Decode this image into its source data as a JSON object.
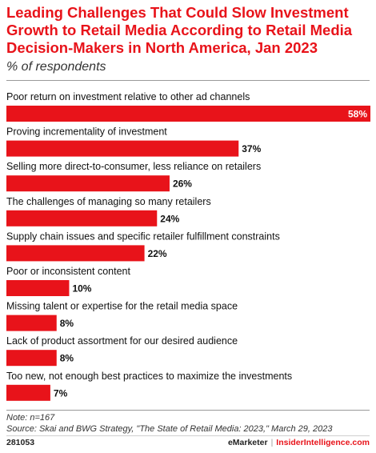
{
  "header": {
    "title": "Leading Challenges That Could Slow Investment Growth to Retail Media According to Retail Media Decision-Makers in North America, Jan 2023",
    "subtitle": "% of respondents"
  },
  "chart_data": {
    "type": "bar",
    "orientation": "horizontal",
    "categories": [
      "Poor return on investment relative to other ad channels",
      "Proving incrementality of investment",
      "Selling more direct-to-consumer, less reliance on retailers",
      "The challenges of managing so many retailers",
      "Supply chain issues and specific retailer fulfillment constraints",
      "Poor or inconsistent content",
      "Missing talent or expertise for the retail media space",
      "Lack of product assortment for our desired audience",
      "Too new, not enough best practices to maximize the investments"
    ],
    "values": [
      58,
      37,
      26,
      24,
      22,
      10,
      8,
      8,
      7
    ],
    "value_labels": [
      "58%",
      "37%",
      "26%",
      "24%",
      "22%",
      "10%",
      "8%",
      "8%",
      "7%"
    ],
    "bar_color": "#e8131a"
  },
  "notes": {
    "note": "Note: n=167",
    "source": "Source: Skai and BWG Strategy, \"The State of Retail Media: 2023,\" March 29, 2023"
  },
  "footer": {
    "code": "281053",
    "brand_left": "eMarketer",
    "separator": "|",
    "brand_right": "InsiderIntelligence.com"
  }
}
